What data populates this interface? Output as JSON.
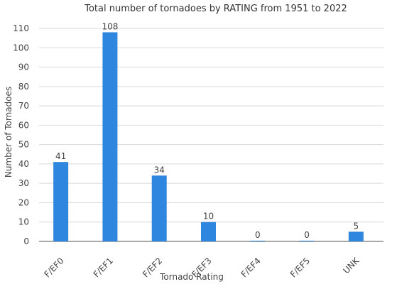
{
  "chart_data": {
    "type": "bar",
    "title": "Total number of tornadoes by RATING from 1951 to 2022",
    "xlabel": "Tornado Rating",
    "ylabel": "Number of Tornadoes",
    "categories": [
      "F/EF0",
      "F/EF1",
      "F/EF2",
      "F/EF3",
      "F/EF4",
      "F/EF5",
      "UNK"
    ],
    "values": [
      41,
      108,
      34,
      10,
      0,
      0,
      5
    ],
    "data_labels": [
      "41",
      "108",
      "34",
      "10",
      "0",
      "0",
      "5"
    ],
    "ylim": [
      0,
      110
    ],
    "yticks": [
      0,
      10,
      20,
      30,
      40,
      50,
      60,
      70,
      80,
      90,
      100,
      110
    ],
    "ytick_labels": [
      "0",
      "10",
      "20",
      "30",
      "40",
      "50",
      "60",
      "70",
      "80",
      "90",
      "100",
      "110"
    ],
    "grid": true,
    "legend": "none",
    "colors": {
      "bar": "#2e86de",
      "grid": "#d9d9d9",
      "text": "#444444"
    }
  }
}
